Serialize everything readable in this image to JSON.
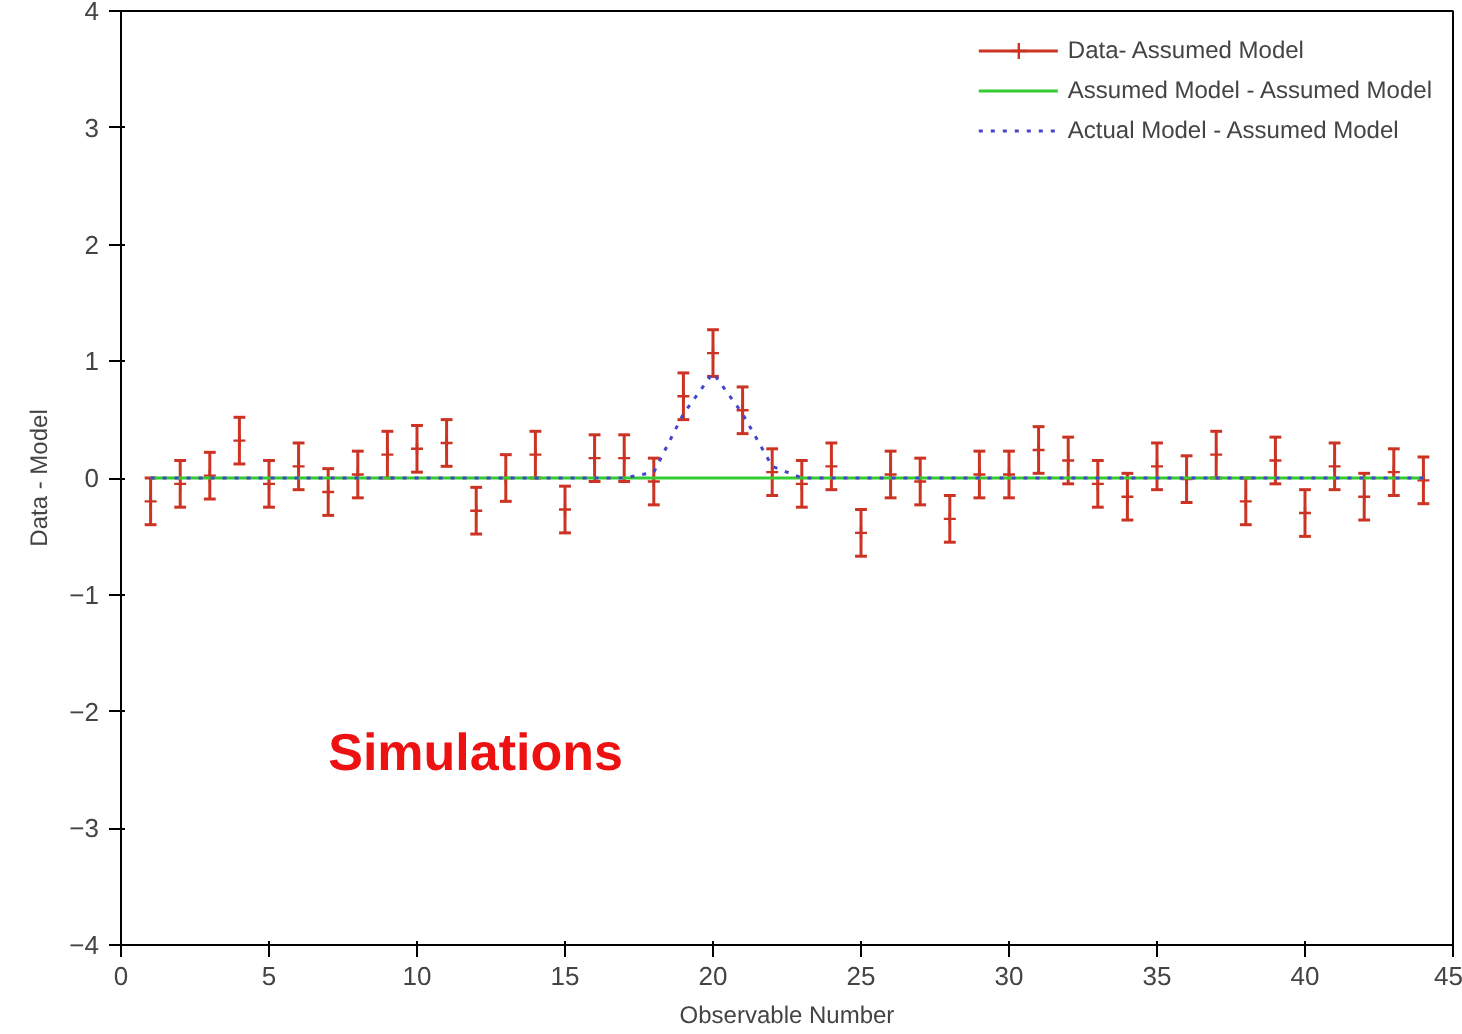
{
  "chart_data": {
    "type": "line",
    "xlabel": "Observable Number",
    "ylabel": "Data - Model",
    "xlim": [
      0,
      45
    ],
    "ylim": [
      -4,
      4
    ],
    "xticks": [
      0,
      5,
      10,
      15,
      20,
      25,
      30,
      35,
      40,
      45
    ],
    "yticks": [
      -4,
      -3,
      -2,
      -1,
      0,
      1,
      2,
      3,
      4
    ],
    "grid": false,
    "legend": "top right",
    "annotations": [
      "Simulations"
    ],
    "series": [
      {
        "name": "Data- Assumed Model",
        "type": "scatter",
        "marker": "cross",
        "color": "#cc3322",
        "x": [
          1,
          2,
          3,
          4,
          5,
          6,
          7,
          8,
          9,
          10,
          11,
          12,
          13,
          14,
          15,
          16,
          17,
          18,
          19,
          20,
          21,
          22,
          23,
          24,
          25,
          26,
          27,
          28,
          29,
          30,
          31,
          32,
          33,
          34,
          35,
          36,
          37,
          38,
          39,
          40,
          41,
          42,
          43,
          44
        ],
        "values": [
          -0.2,
          -0.05,
          0.02,
          0.32,
          -0.05,
          0.1,
          -0.12,
          0.03,
          0.2,
          0.25,
          0.3,
          -0.28,
          0.0,
          0.2,
          -0.27,
          0.17,
          0.17,
          -0.03,
          0.7,
          1.07,
          0.58,
          0.05,
          -0.05,
          0.1,
          -0.47,
          0.03,
          -0.03,
          -0.35,
          0.03,
          0.03,
          0.24,
          0.15,
          -0.05,
          -0.16,
          0.1,
          -0.01,
          0.2,
          -0.2,
          0.15,
          -0.3,
          0.1,
          -0.16,
          0.05,
          -0.02
        ],
        "errors": [
          0.2,
          0.2,
          0.2,
          0.2,
          0.2,
          0.2,
          0.2,
          0.2,
          0.2,
          0.2,
          0.2,
          0.2,
          0.2,
          0.2,
          0.2,
          0.2,
          0.2,
          0.2,
          0.2,
          0.2,
          0.2,
          0.2,
          0.2,
          0.2,
          0.2,
          0.2,
          0.2,
          0.2,
          0.2,
          0.2,
          0.2,
          0.2,
          0.2,
          0.2,
          0.2,
          0.2,
          0.2,
          0.2,
          0.2,
          0.2,
          0.2,
          0.2,
          0.2,
          0.2
        ]
      },
      {
        "name": "Assumed Model - Assumed Model",
        "color": "#33cc33",
        "line_style": "solid",
        "x": [
          1,
          44
        ],
        "values": [
          0,
          0
        ]
      },
      {
        "name": "Actual Model - Assumed Model",
        "color": "#4444cc",
        "line_style": "dotted",
        "x": [
          1,
          17,
          18,
          19,
          20,
          21,
          22,
          23,
          44
        ],
        "values": [
          0,
          0,
          0.05,
          0.55,
          0.9,
          0.55,
          0.1,
          0,
          0
        ]
      }
    ]
  }
}
